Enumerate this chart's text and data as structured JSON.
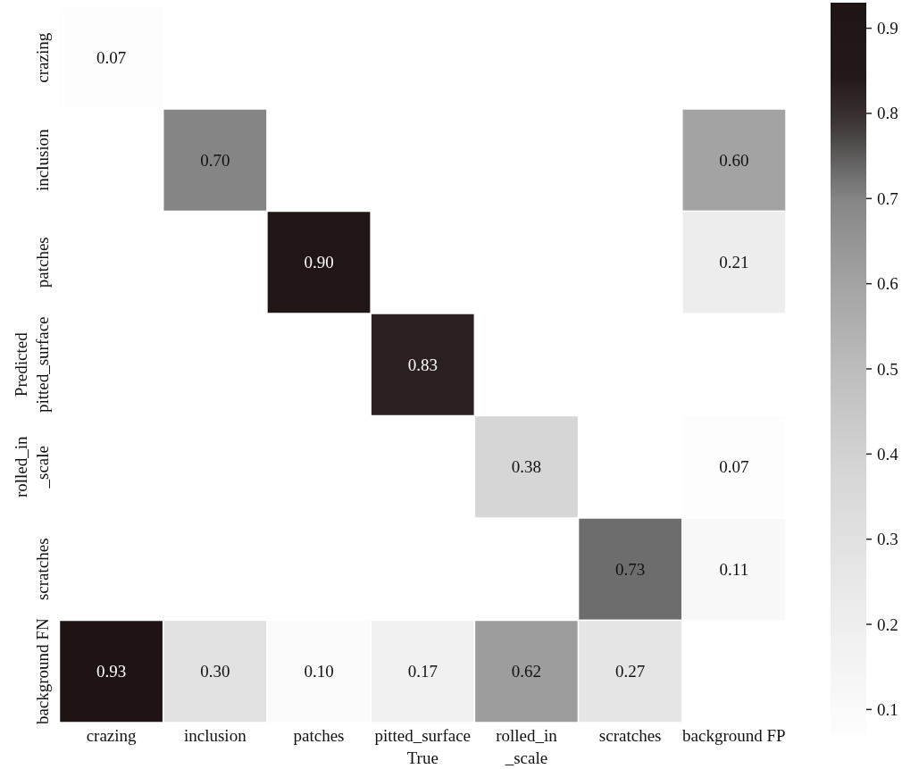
{
  "chart_data": {
    "type": "heatmap",
    "xlabel": "True",
    "ylabel": "Predicted",
    "categories": [
      "crazing",
      "inclusion",
      "patches",
      "pitted_surface",
      "rolled_in\n_scale",
      "scratches",
      "background FP"
    ],
    "y_categories": [
      "crazing",
      "inclusion",
      "patches",
      "pitted_surface",
      "rolled_in\n_scale",
      "scratches",
      "background FN"
    ],
    "cells": [
      [
        0.07,
        null,
        null,
        null,
        null,
        null,
        null
      ],
      [
        null,
        0.7,
        null,
        null,
        null,
        null,
        0.6
      ],
      [
        null,
        null,
        0.9,
        null,
        null,
        null,
        0.21
      ],
      [
        null,
        null,
        null,
        0.83,
        null,
        null,
        null
      ],
      [
        null,
        null,
        null,
        null,
        0.38,
        null,
        0.07
      ],
      [
        null,
        null,
        null,
        null,
        null,
        0.73,
        0.11
      ],
      [
        0.93,
        0.3,
        0.1,
        0.17,
        0.62,
        0.27,
        null
      ]
    ],
    "cell_labels": [
      [
        "0.07",
        null,
        null,
        null,
        null,
        null,
        null
      ],
      [
        null,
        "0.70",
        null,
        null,
        null,
        null,
        "0.60"
      ],
      [
        null,
        null,
        "0.90",
        null,
        null,
        null,
        "0.21"
      ],
      [
        null,
        null,
        null,
        "0.83",
        null,
        null,
        null
      ],
      [
        null,
        null,
        null,
        null,
        "0.38",
        null,
        "0.07"
      ],
      [
        null,
        null,
        null,
        null,
        null,
        "0.73",
        "0.11"
      ],
      [
        "0.93",
        "0.30",
        "0.10",
        "0.17",
        "0.62",
        "0.27",
        null
      ]
    ],
    "clim": [
      0.07,
      0.93
    ],
    "cticks": [
      0.1,
      0.2,
      0.3,
      0.4,
      0.5,
      0.6,
      0.7,
      0.8,
      0.9
    ]
  }
}
